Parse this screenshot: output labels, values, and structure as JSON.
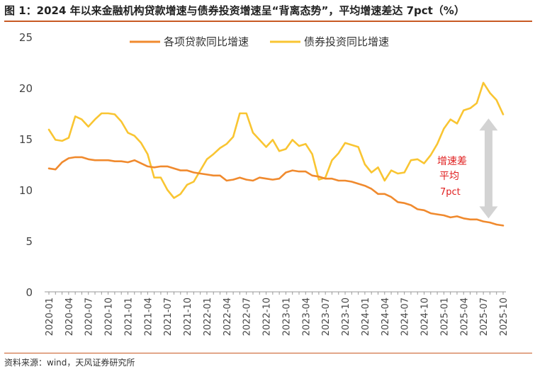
{
  "header": {
    "title": "图 1：2024 年以来金融机构贷款增速与债券投资增速呈“背离态势”，平均增速差达 7pct（%）"
  },
  "footer": {
    "source": "资料来源：wind，天风证券研究所"
  },
  "colors": {
    "loan": "#f08a2e",
    "bond": "#f9c532",
    "accent_border": "#c85a24",
    "annotation_text": "#e02020",
    "arrow": "#d3d3d3"
  },
  "chart_data": {
    "type": "line",
    "x": [
      "2020-01",
      "2020-02",
      "2020-03",
      "2020-04",
      "2020-05",
      "2020-06",
      "2020-07",
      "2020-08",
      "2020-09",
      "2020-10",
      "2020-11",
      "2020-12",
      "2021-01",
      "2021-02",
      "2021-03",
      "2021-04",
      "2021-05",
      "2021-06",
      "2021-07",
      "2021-08",
      "2021-09",
      "2021-10",
      "2021-11",
      "2021-12",
      "2022-01",
      "2022-02",
      "2022-03",
      "2022-04",
      "2022-05",
      "2022-06",
      "2022-07",
      "2022-08",
      "2022-09",
      "2022-10",
      "2022-11",
      "2022-12",
      "2023-01",
      "2023-02",
      "2023-03",
      "2023-04",
      "2023-05",
      "2023-06",
      "2023-07",
      "2023-08",
      "2023-09",
      "2023-10",
      "2023-11",
      "2023-12",
      "2024-01",
      "2024-02",
      "2024-03",
      "2024-04",
      "2024-05",
      "2024-06",
      "2024-07",
      "2024-08",
      "2024-09",
      "2024-10",
      "2024-11",
      "2024-12",
      "2025-01",
      "2025-02",
      "2025-03",
      "2025-04",
      "2025-05",
      "2025-06",
      "2025-07",
      "2025-08",
      "2025-09",
      "2025-10"
    ],
    "x_tick_labels": [
      "2020-01",
      "2020-04",
      "2020-07",
      "2020-10",
      "2021-01",
      "2021-04",
      "2021-07",
      "2021-10",
      "2022-01",
      "2022-04",
      "2022-07",
      "2022-10",
      "2023-01",
      "2023-04",
      "2023-07",
      "2023-10",
      "2024-01",
      "2024-04",
      "2024-07",
      "2024-10",
      "2025-01",
      "2025-04",
      "2025-07",
      "2025-10"
    ],
    "ylim": [
      0,
      25
    ],
    "y_ticks": [
      0,
      5,
      10,
      15,
      20,
      25
    ],
    "grid": false,
    "legend_position": "top",
    "series": [
      {
        "name": "各项贷款同比增速",
        "color": "#f08a2e",
        "values": [
          12.1,
          12.0,
          12.7,
          13.1,
          13.2,
          13.2,
          13.0,
          12.9,
          12.9,
          12.9,
          12.8,
          12.8,
          12.7,
          12.9,
          12.6,
          12.3,
          12.2,
          12.3,
          12.3,
          12.1,
          11.9,
          11.9,
          11.7,
          11.6,
          11.5,
          11.4,
          11.4,
          10.9,
          11.0,
          11.2,
          11.0,
          10.9,
          11.2,
          11.1,
          11.0,
          11.1,
          11.7,
          11.9,
          11.8,
          11.8,
          11.4,
          11.3,
          11.1,
          11.1,
          10.9,
          10.9,
          10.8,
          10.6,
          10.4,
          10.1,
          9.6,
          9.6,
          9.3,
          8.8,
          8.7,
          8.5,
          8.1,
          8.0,
          7.7,
          7.6,
          7.5,
          7.3,
          7.4,
          7.2,
          7.1,
          7.1,
          6.9,
          6.8,
          6.6,
          6.5
        ]
      },
      {
        "name": "债券投资同比增速",
        "color": "#f9c532",
        "values": [
          15.9,
          14.9,
          14.8,
          15.1,
          17.2,
          16.9,
          16.2,
          16.9,
          17.5,
          17.5,
          17.4,
          16.7,
          15.6,
          15.3,
          14.6,
          13.5,
          11.2,
          11.2,
          10.0,
          9.2,
          9.6,
          10.5,
          10.8,
          11.9,
          13.0,
          13.5,
          14.1,
          14.5,
          15.2,
          17.5,
          17.5,
          15.6,
          14.9,
          14.2,
          14.9,
          13.8,
          14.0,
          14.9,
          14.3,
          14.5,
          13.5,
          11.0,
          11.2,
          12.9,
          13.6,
          14.6,
          14.4,
          14.2,
          12.5,
          11.7,
          12.2,
          10.9,
          11.9,
          11.6,
          11.7,
          12.9,
          13.0,
          12.6,
          13.4,
          14.5,
          16.0,
          16.9,
          16.5,
          17.8,
          18.0,
          18.5,
          20.5,
          19.5,
          18.8,
          17.4
        ]
      }
    ],
    "annotations": [
      {
        "text_lines": [
          "增速差",
          "平均",
          "7pct"
        ],
        "type": "double-arrow",
        "x": "2025-08",
        "from": 17.0,
        "to": 7.2
      }
    ]
  }
}
